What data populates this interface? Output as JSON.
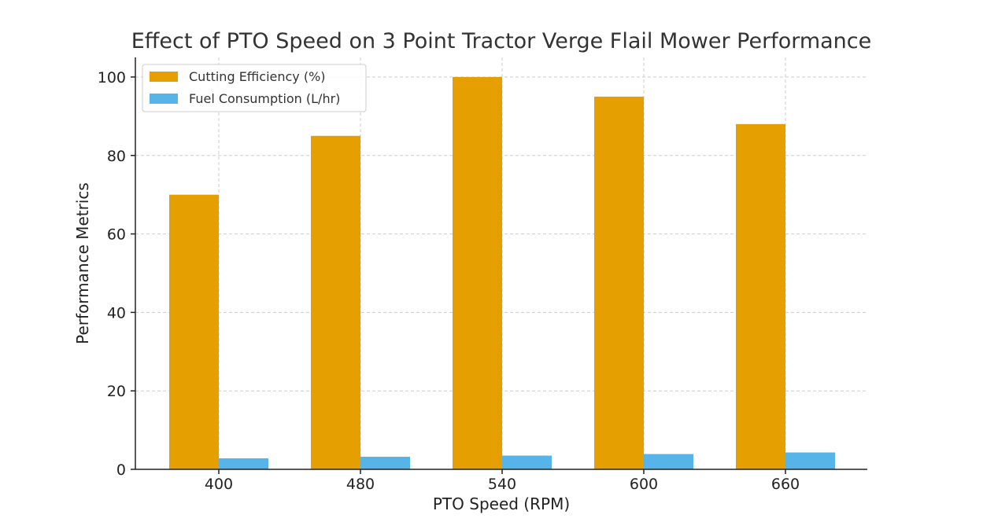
{
  "chart_data": {
    "type": "bar",
    "title": "Effect of PTO Speed on 3 Point Tractor Verge Flail Mower Performance",
    "xlabel": "PTO Speed (RPM)",
    "ylabel": "Performance Metrics",
    "categories": [
      "400",
      "480",
      "540",
      "600",
      "660"
    ],
    "series": [
      {
        "name": "Cutting Efficiency (%)",
        "values": [
          70,
          85,
          100,
          95,
          88
        ],
        "color": "#E69F00"
      },
      {
        "name": "Fuel Consumption (L/hr)",
        "values": [
          2.8,
          3.2,
          3.5,
          3.9,
          4.3
        ],
        "color": "#56B4E9"
      }
    ],
    "yticks": [
      0,
      20,
      40,
      60,
      80,
      100
    ],
    "ylim": [
      0,
      105
    ],
    "grid": true,
    "legend_position": "top-left"
  }
}
